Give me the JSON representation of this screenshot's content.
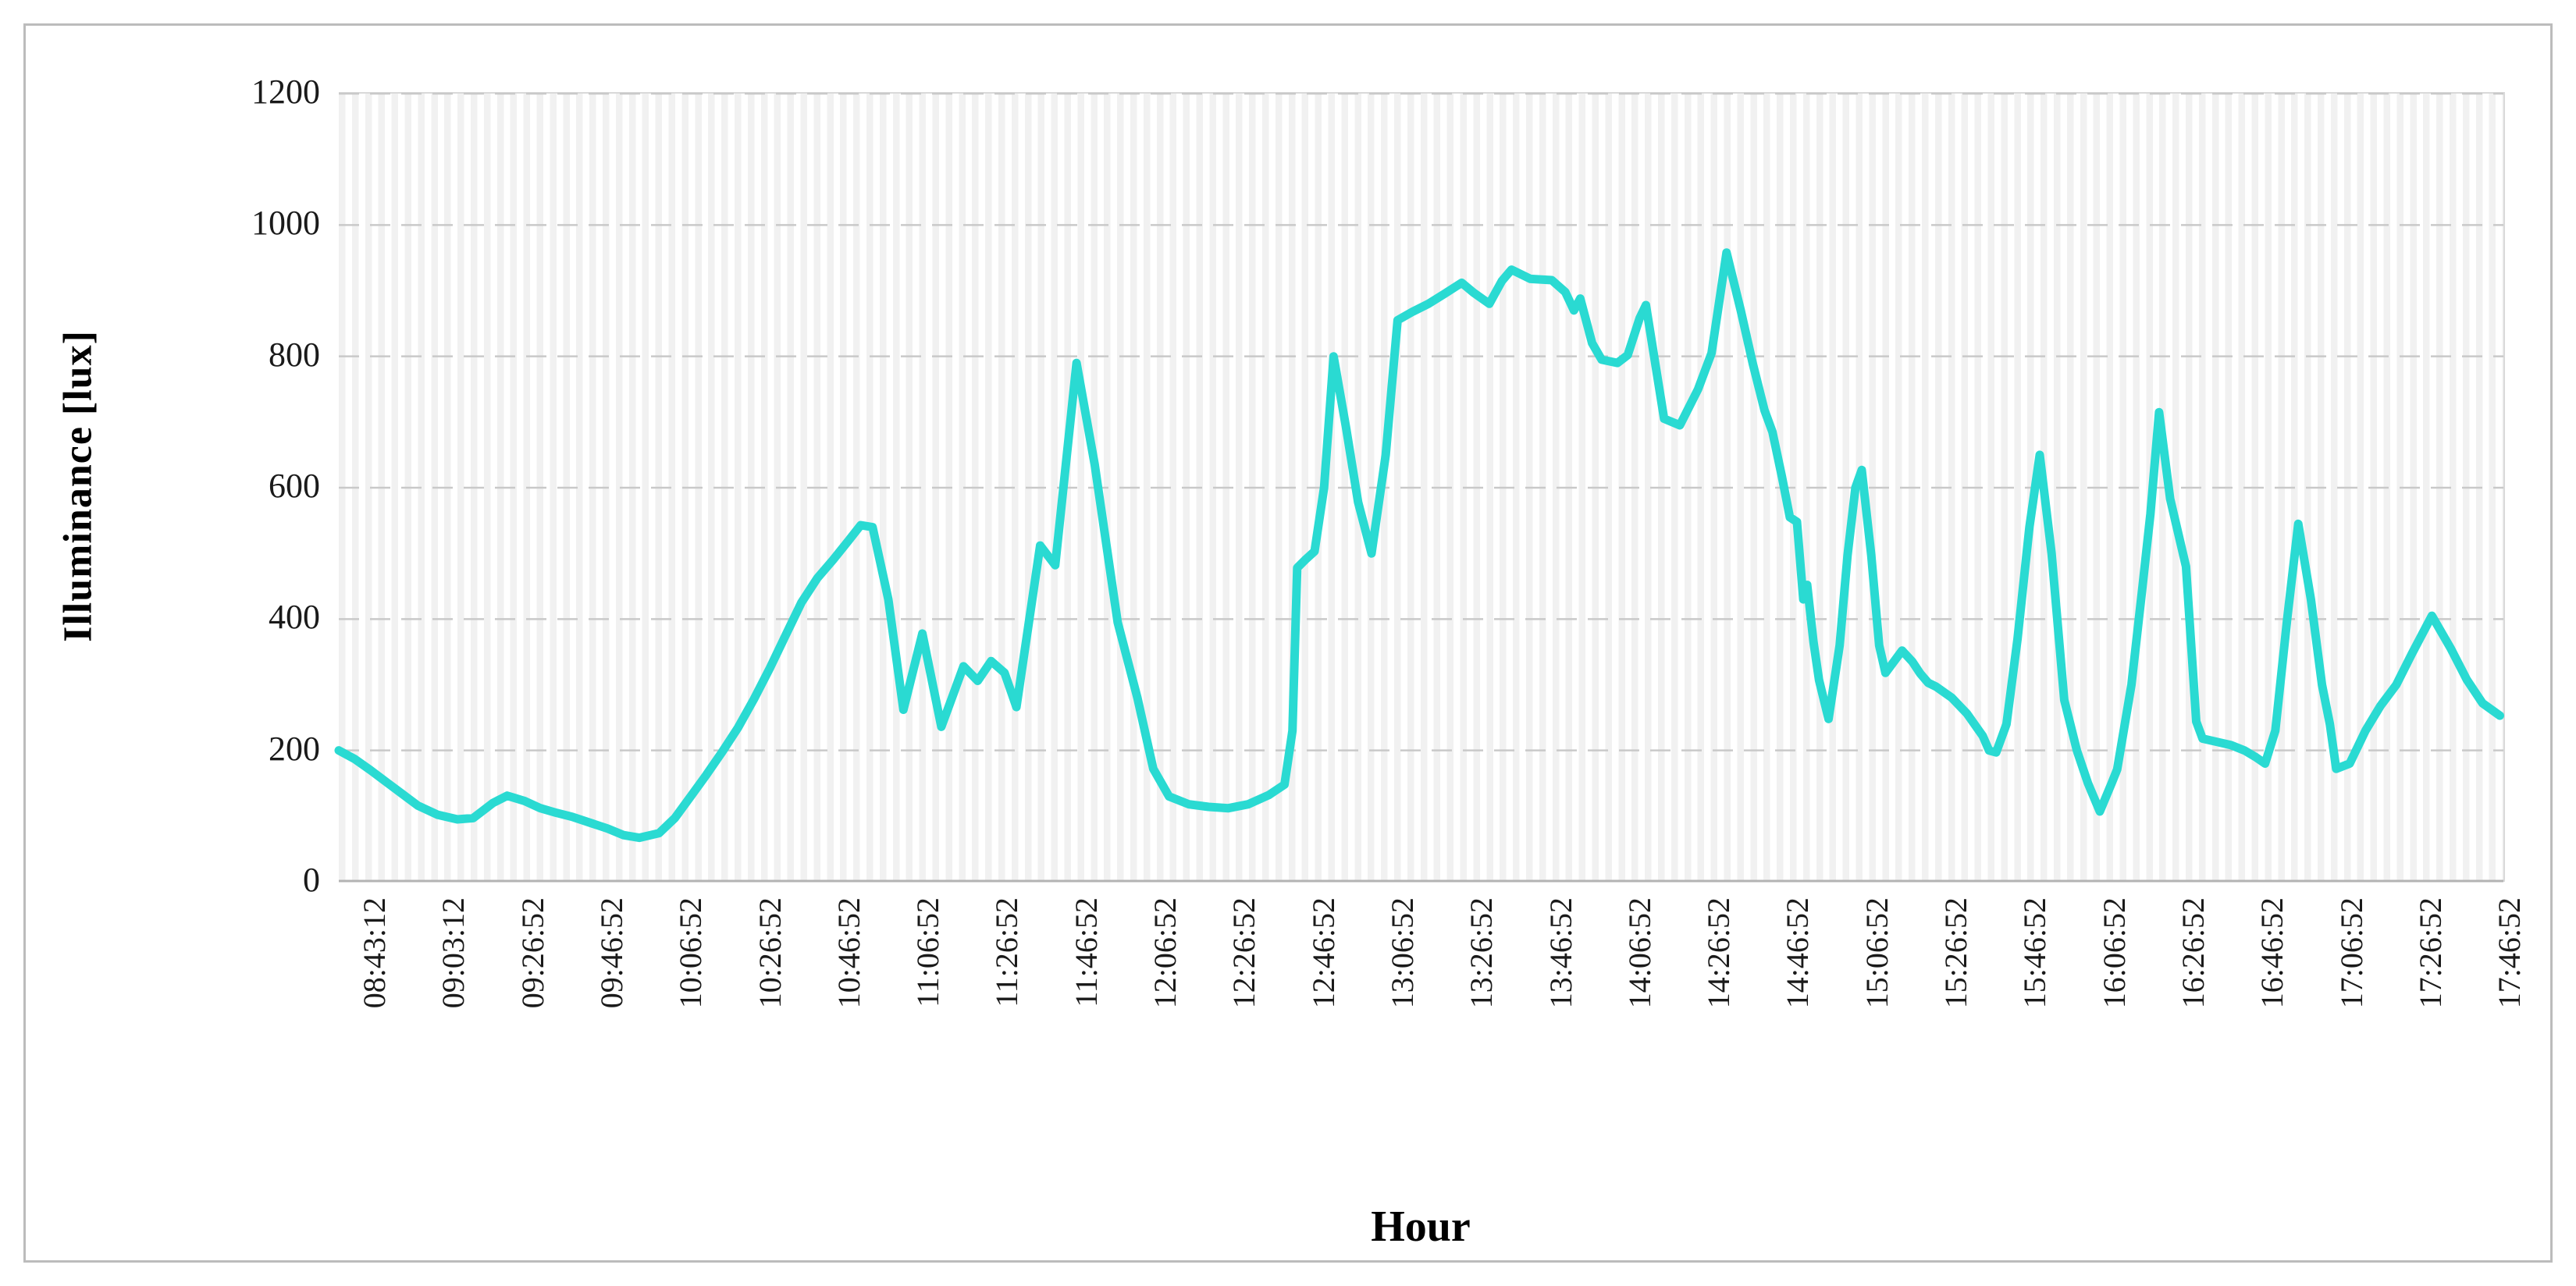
{
  "axis_titles": {
    "y": "Illuminance [lux]",
    "x": "Hour"
  },
  "chart_data": {
    "type": "line",
    "title": "",
    "xlabel": "Hour",
    "ylabel": "Illuminance [lux]",
    "ylim": [
      0,
      1200
    ],
    "yticks": [
      0,
      200,
      400,
      600,
      800,
      1000,
      1200
    ],
    "grid": "horizontal dashed gridlines at 200-lux steps; fine vertical minor stripes; no legend",
    "legend_position": "none",
    "line_color": "#2adad2",
    "x_tick_labels": [
      "08:43:12",
      "09:03:12",
      "09:26:52",
      "09:46:52",
      "10:06:52",
      "10:26:52",
      "10:46:52",
      "11:06:52",
      "11:26:52",
      "11:46:52",
      "12:06:52",
      "12:26:52",
      "12:46:52",
      "13:06:52",
      "13:26:52",
      "13:46:52",
      "14:06:52",
      "14:26:52",
      "14:46:52",
      "15:06:52",
      "15:26:52",
      "15:46:52",
      "16:06:52",
      "16:26:52",
      "16:46:52",
      "17:06:52",
      "17:26:52",
      "17:46:52"
    ],
    "series": [
      {
        "name": "Illuminance",
        "units": "lux",
        "note": "points are [x,y] where x is position in x-axis tick slots (0 = 08:43:12, 1 slot = 20 min), y is lux estimated from gridlines",
        "points": [
          [
            0,
            200
          ],
          [
            0.2,
            187
          ],
          [
            0.4,
            170
          ],
          [
            0.6,
            152
          ],
          [
            0.8,
            134
          ],
          [
            1.0,
            116
          ],
          [
            1.25,
            102
          ],
          [
            1.5,
            95
          ],
          [
            1.7,
            97
          ],
          [
            1.95,
            120
          ],
          [
            2.13,
            131
          ],
          [
            2.35,
            123
          ],
          [
            2.55,
            112
          ],
          [
            2.75,
            105
          ],
          [
            2.95,
            99
          ],
          [
            3.2,
            89
          ],
          [
            3.4,
            81
          ],
          [
            3.6,
            71
          ],
          [
            3.8,
            67
          ],
          [
            4.05,
            74
          ],
          [
            4.25,
            97
          ],
          [
            4.45,
            130
          ],
          [
            4.65,
            163
          ],
          [
            4.85,
            198
          ],
          [
            5.05,
            235
          ],
          [
            5.25,
            278
          ],
          [
            5.45,
            325
          ],
          [
            5.65,
            375
          ],
          [
            5.85,
            425
          ],
          [
            6.05,
            462
          ],
          [
            6.25,
            490
          ],
          [
            6.45,
            520
          ],
          [
            6.6,
            543
          ],
          [
            6.75,
            540
          ],
          [
            6.95,
            430
          ],
          [
            7.14,
            262
          ],
          [
            7.38,
            378
          ],
          [
            7.62,
            236
          ],
          [
            7.9,
            328
          ],
          [
            8.08,
            306
          ],
          [
            8.25,
            336
          ],
          [
            8.42,
            318
          ],
          [
            8.57,
            266
          ],
          [
            8.87,
            512
          ],
          [
            9.06,
            482
          ],
          [
            9.33,
            790
          ],
          [
            9.56,
            635
          ],
          [
            9.85,
            395
          ],
          [
            10.1,
            280
          ],
          [
            10.3,
            172
          ],
          [
            10.5,
            130
          ],
          [
            10.75,
            118
          ],
          [
            11.0,
            114
          ],
          [
            11.25,
            112
          ],
          [
            11.5,
            118
          ],
          [
            11.76,
            132
          ],
          [
            11.96,
            148
          ],
          [
            12.06,
            230
          ],
          [
            12.12,
            478
          ],
          [
            12.22,
            490
          ],
          [
            12.34,
            503
          ],
          [
            12.46,
            600
          ],
          [
            12.58,
            800
          ],
          [
            12.74,
            690
          ],
          [
            12.89,
            578
          ],
          [
            13.06,
            500
          ],
          [
            13.24,
            650
          ],
          [
            13.39,
            855
          ],
          [
            13.58,
            868
          ],
          [
            13.78,
            880
          ],
          [
            13.98,
            895
          ],
          [
            14.2,
            912
          ],
          [
            14.35,
            897
          ],
          [
            14.55,
            880
          ],
          [
            14.71,
            915
          ],
          [
            14.83,
            932
          ],
          [
            15.07,
            918
          ],
          [
            15.34,
            916
          ],
          [
            15.51,
            898
          ],
          [
            15.62,
            870
          ],
          [
            15.7,
            888
          ],
          [
            15.85,
            820
          ],
          [
            15.97,
            795
          ],
          [
            16.17,
            790
          ],
          [
            16.3,
            802
          ],
          [
            16.45,
            858
          ],
          [
            16.53,
            878
          ],
          [
            16.76,
            705
          ],
          [
            16.96,
            695
          ],
          [
            17.19,
            750
          ],
          [
            17.36,
            805
          ],
          [
            17.55,
            958
          ],
          [
            17.73,
            870
          ],
          [
            17.88,
            790
          ],
          [
            18.03,
            718
          ],
          [
            18.13,
            685
          ],
          [
            18.25,
            617
          ],
          [
            18.35,
            555
          ],
          [
            18.44,
            548
          ],
          [
            18.52,
            430
          ],
          [
            18.57,
            452
          ],
          [
            18.65,
            365
          ],
          [
            18.72,
            307
          ],
          [
            18.84,
            248
          ],
          [
            18.98,
            360
          ],
          [
            19.08,
            497
          ],
          [
            19.18,
            600
          ],
          [
            19.26,
            627
          ],
          [
            19.38,
            497
          ],
          [
            19.48,
            360
          ],
          [
            19.56,
            318
          ],
          [
            19.77,
            352
          ],
          [
            19.9,
            335
          ],
          [
            20.0,
            317
          ],
          [
            20.1,
            303
          ],
          [
            20.2,
            297
          ],
          [
            20.4,
            280
          ],
          [
            20.59,
            256
          ],
          [
            20.79,
            222
          ],
          [
            20.87,
            200
          ],
          [
            20.96,
            197
          ],
          [
            21.09,
            240
          ],
          [
            21.23,
            370
          ],
          [
            21.38,
            540
          ],
          [
            21.51,
            650
          ],
          [
            21.66,
            500
          ],
          [
            21.82,
            277
          ],
          [
            21.98,
            200
          ],
          [
            22.12,
            150
          ],
          [
            22.27,
            107
          ],
          [
            22.42,
            150
          ],
          [
            22.49,
            171
          ],
          [
            22.67,
            300
          ],
          [
            22.81,
            450
          ],
          [
            22.91,
            560
          ],
          [
            23.02,
            715
          ],
          [
            23.16,
            583
          ],
          [
            23.36,
            480
          ],
          [
            23.49,
            244
          ],
          [
            23.57,
            218
          ],
          [
            23.75,
            213
          ],
          [
            23.93,
            208
          ],
          [
            24.1,
            200
          ],
          [
            24.24,
            190
          ],
          [
            24.36,
            180
          ],
          [
            24.49,
            230
          ],
          [
            24.64,
            400
          ],
          [
            24.78,
            545
          ],
          [
            24.94,
            430
          ],
          [
            25.08,
            300
          ],
          [
            25.18,
            240
          ],
          [
            25.26,
            172
          ],
          [
            25.43,
            180
          ],
          [
            25.63,
            230
          ],
          [
            25.82,
            268
          ],
          [
            26.02,
            300
          ],
          [
            26.22,
            348
          ],
          [
            26.47,
            405
          ],
          [
            26.71,
            355
          ],
          [
            26.91,
            308
          ],
          [
            27.11,
            272
          ],
          [
            27.33,
            253
          ]
        ]
      }
    ]
  }
}
